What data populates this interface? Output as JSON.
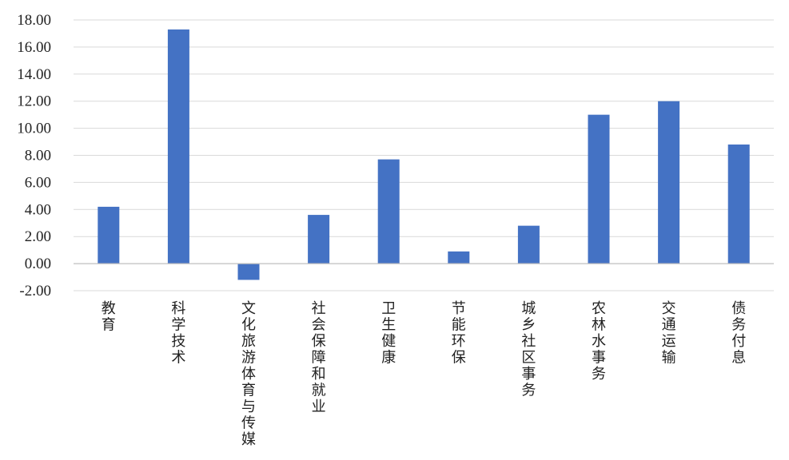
{
  "chart_data": {
    "type": "bar",
    "title": "",
    "xlabel": "",
    "ylabel": "",
    "ylim": [
      -2,
      18
    ],
    "ytick_step": 2,
    "ytick_labels": [
      "-2.00",
      "0.00",
      "2.00",
      "4.00",
      "6.00",
      "8.00",
      "10.00",
      "12.00",
      "14.00",
      "16.00",
      "18.00"
    ],
    "grid": true,
    "legend": "none",
    "categories": [
      "教育",
      "科学技术",
      "文化旅游体育与传媒",
      "社会保障和就业",
      "卫生健康",
      "节能环保",
      "城乡社区事务",
      "农林水事务",
      "交通运输",
      "债务付息"
    ],
    "values": [
      4.2,
      17.3,
      -1.2,
      3.6,
      7.7,
      0.9,
      2.8,
      11.0,
      12.0,
      8.8
    ],
    "colors": {
      "bar": "#4472C4",
      "grid": "#D9D9D9",
      "axis": "#BFBFBF"
    }
  }
}
